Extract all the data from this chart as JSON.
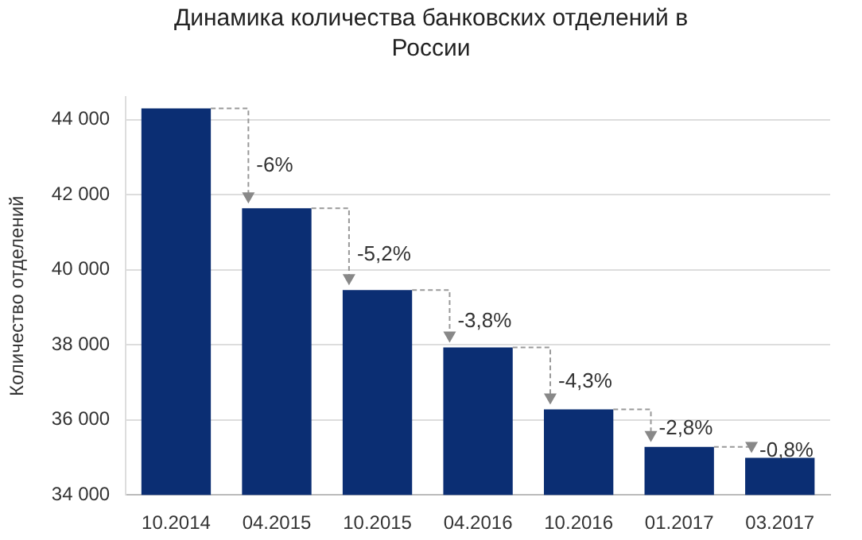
{
  "chart_data": {
    "type": "bar",
    "title": "Динамика количества банковских отделений в России",
    "ylabel": "Количество отделений",
    "categories": [
      "10.2014",
      "04.2015",
      "10.2015",
      "04.2016",
      "10.2016",
      "01.2017",
      "03.2017"
    ],
    "values": [
      44300,
      41640,
      39460,
      37930,
      36280,
      35280,
      34990
    ],
    "color": "#0b2e73",
    "ylim": [
      34000,
      44600
    ],
    "yticks": [
      {
        "value": 34000,
        "label": "34 000"
      },
      {
        "value": 36000,
        "label": "36 000"
      },
      {
        "value": 38000,
        "label": "38 000"
      },
      {
        "value": 40000,
        "label": "40 000"
      },
      {
        "value": 42000,
        "label": "42 000"
      },
      {
        "value": 44000,
        "label": "44 000"
      }
    ],
    "grid": "y",
    "legend": false,
    "annotations": [
      {
        "text": "-6%",
        "x": "04.2015",
        "y": 41640
      },
      {
        "text": "-5,2%",
        "x": "10.2015",
        "y": 39460
      },
      {
        "text": "-3,8%",
        "x": "04.2016",
        "y": 37930
      },
      {
        "text": "-4,3%",
        "x": "10.2016",
        "y": 36280
      },
      {
        "text": "-2,8%",
        "x": "01.2017",
        "y": 35280
      },
      {
        "text": "-0,8%",
        "x": "03.2017",
        "y": 34990
      }
    ]
  }
}
